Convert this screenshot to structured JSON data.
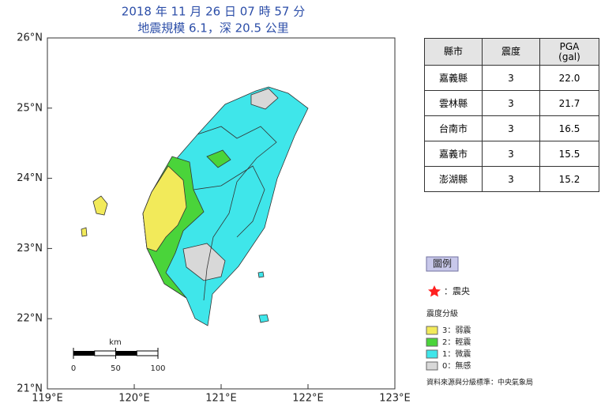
{
  "header": {
    "title_line1": "2018 年 11 月 26 日 07 時 57 分",
    "title_line2": "地震規模 6.1，深 20.5 公里"
  },
  "map": {
    "lat_ticks": [
      {
        "value": 26,
        "label": "26°N"
      },
      {
        "value": 25,
        "label": "25°N"
      },
      {
        "value": 24,
        "label": "24°N"
      },
      {
        "value": 23,
        "label": "23°N"
      },
      {
        "value": 22,
        "label": "22°N"
      },
      {
        "value": 21,
        "label": "21°N"
      }
    ],
    "lon_ticks": [
      {
        "value": 119,
        "label": "119°E"
      },
      {
        "value": 120,
        "label": "120°E"
      },
      {
        "value": 121,
        "label": "121°E"
      },
      {
        "value": 122,
        "label": "122°E"
      },
      {
        "value": 123,
        "label": "123°E"
      }
    ],
    "scale_bar": {
      "unit": "km",
      "ticks": [
        0,
        50,
        100
      ]
    }
  },
  "table": {
    "header": {
      "county": "縣市",
      "intensity": "震度",
      "pga": "PGA",
      "pga_unit": "(gal)"
    },
    "rows": [
      [
        "嘉義縣",
        "3",
        "22.0"
      ],
      [
        "雲林縣",
        "3",
        "21.7"
      ],
      [
        "台南市",
        "3",
        "16.5"
      ],
      [
        "嘉義市",
        "3",
        "15.5"
      ],
      [
        "澎湖縣",
        "3",
        "15.2"
      ]
    ]
  },
  "legend": {
    "title": "圖例",
    "epicenter": "：震央",
    "intensity_title": "震度分級",
    "items": [
      {
        "label": "3：弱震",
        "color": "#f2ea5a"
      },
      {
        "label": "2：輕震",
        "color": "#4ad43a"
      },
      {
        "label": "1：微震",
        "color": "#3fe6ea"
      },
      {
        "label": "0：無感",
        "color": "#d8d8d8"
      }
    ]
  },
  "source": "資料來源與分級標準：中央氣象局"
}
